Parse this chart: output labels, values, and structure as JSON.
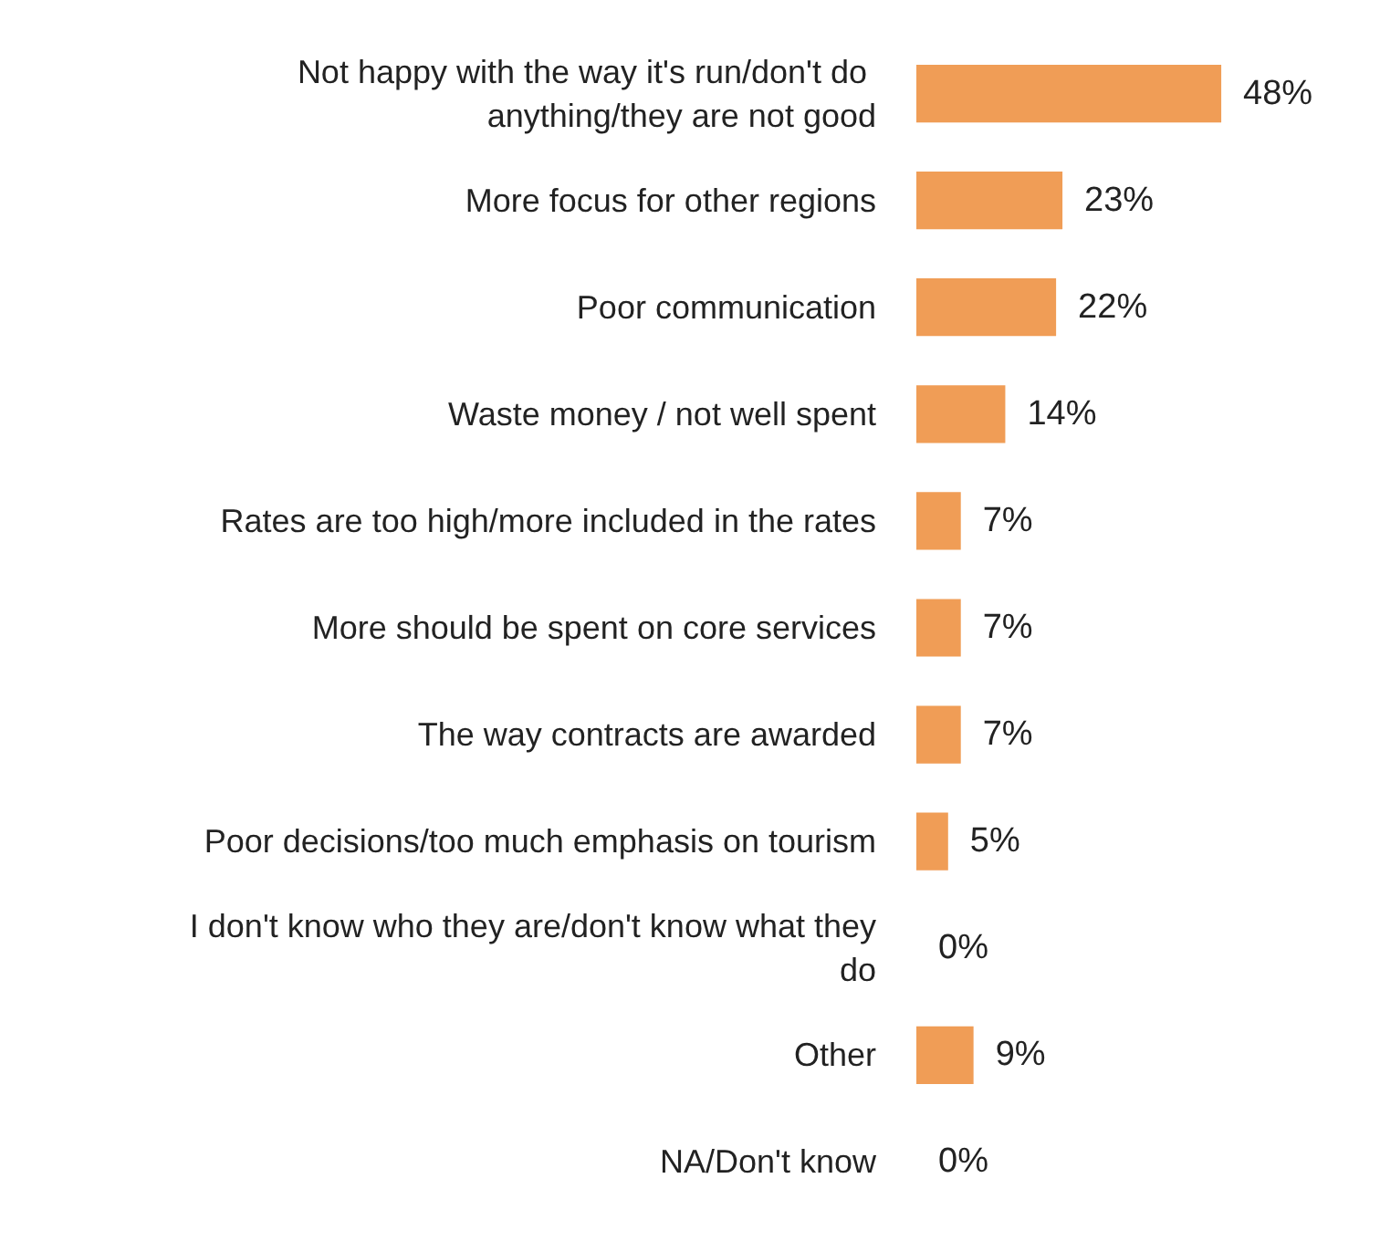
{
  "chart_data": {
    "type": "bar",
    "orientation": "horizontal",
    "categories": [
      "Not happy with the way it's run/don't do anything/they are not good",
      "More focus for other regions",
      "Poor communication",
      "Waste money / not well spent",
      "Rates are too high/more included in the rates",
      "More should be spent on core services",
      "The way contracts are awarded",
      "Poor decisions/too much emphasis on tourism",
      "I don't know who they are/don't know what they do",
      "Other",
      "NA/Don't know"
    ],
    "values": [
      48,
      23,
      22,
      14,
      7,
      7,
      7,
      5,
      0,
      9,
      0
    ],
    "value_labels": [
      "48%",
      "23%",
      "22%",
      "14%",
      "7%",
      "7%",
      "7%",
      "5%",
      "0%",
      "9%",
      "0%"
    ],
    "color": "#f09d56"
  }
}
